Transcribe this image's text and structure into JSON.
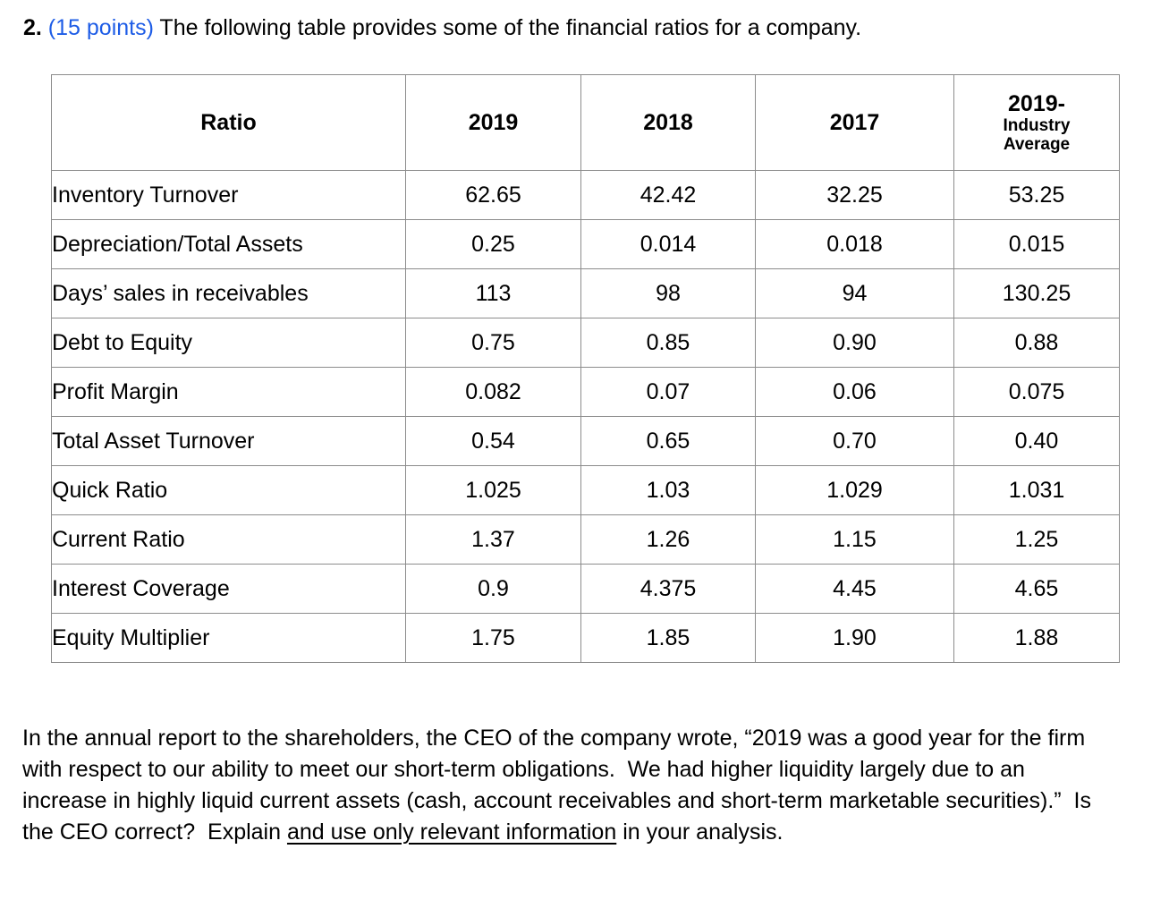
{
  "page": {
    "background": "#ffffff",
    "text_color": "#000000",
    "accent_blue": "#1d5ce6",
    "table_border_gray": "#8c8c8c"
  },
  "title": {
    "number": "2.",
    "points": " (15 points) ",
    "rest": "The following table provides some of the financial ratios for a company."
  },
  "table": {
    "headers": [
      "Ratio",
      "2019",
      "2018",
      "2017"
    ],
    "header_last": {
      "main": "2019-",
      "sub_line1": "Industry",
      "sub_line2": "Average"
    },
    "rows": [
      [
        "Inventory Turnover",
        "62.65",
        "42.42",
        "32.25",
        "53.25"
      ],
      [
        "Depreciation/Total Assets",
        "0.25",
        "0.014",
        "0.018",
        "0.015"
      ],
      [
        "Days’ sales in receivables",
        "113",
        "98",
        "94",
        "130.25"
      ],
      [
        "Debt to Equity",
        "0.75",
        "0.85",
        "0.90",
        "0.88"
      ],
      [
        "Profit Margin",
        "0.082",
        "0.07",
        "0.06",
        "0.075"
      ],
      [
        "Total Asset Turnover",
        "0.54",
        "0.65",
        "0.70",
        "0.40"
      ],
      [
        "Quick Ratio",
        "1.025",
        "1.03",
        "1.029",
        "1.031"
      ],
      [
        "Current Ratio",
        "1.37",
        "1.26",
        "1.15",
        "1.25"
      ],
      [
        "Interest Coverage",
        "0.9",
        "4.375",
        "4.45",
        "4.65"
      ],
      [
        "Equity Multiplier",
        "1.75",
        "1.85",
        "1.90",
        "1.88"
      ]
    ]
  },
  "paragraph": {
    "before": "In the annual report to the shareholders, the CEO of the company wrote, “2019 was a good year for the firm with respect to our ability to meet our short-term obligations.  We had higher liquidity largely due to an increase in highly liquid current assets (cash, account receivables and short-term marketable securities).”  Is the CEO correct?  Explain ",
    "underlined": "and use only relevant information",
    "after": " in your analysis."
  }
}
